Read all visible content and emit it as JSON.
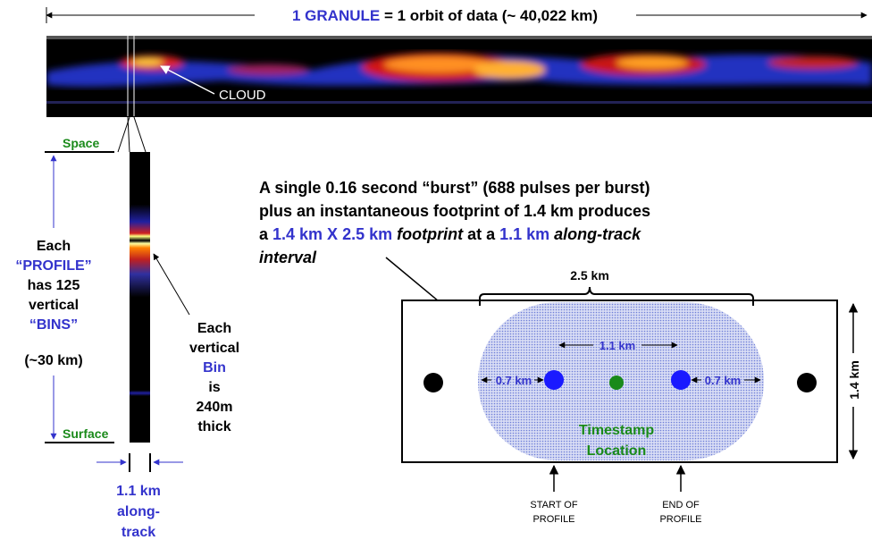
{
  "header": {
    "granule": "1 GRANULE",
    "rest": "= 1 orbit of data (~ 40,022 km)"
  },
  "strip": {
    "cloud": "CLOUD"
  },
  "profile": {
    "space": "Space",
    "surface": "Surface",
    "left": [
      "Each",
      "“PROFILE”",
      "has 125",
      "vertical",
      "“BINS”",
      "(~30 km)"
    ],
    "bin": [
      "Each",
      "vertical",
      "Bin",
      "is",
      "240m",
      "thick"
    ],
    "bottom": [
      "1.1 km",
      "along-",
      "track"
    ]
  },
  "caption": {
    "line1": "A single 0.16 second “burst” (688 pulses per burst)",
    "line2": "plus an instantaneous footprint of 1.4 km produces",
    "line3": [
      "a ",
      "1.4 km X 2.5 km",
      " footprint",
      " at a ",
      "1.1 km",
      " along-track"
    ],
    "line4": "interval"
  },
  "footprint": {
    "width": "2.5 km",
    "height": "1.4 km",
    "spacing": "1.1 km",
    "left_gap": "0.7 km",
    "right_gap": "0.7 km",
    "timestamp": [
      "Timestamp",
      "Location"
    ],
    "start": [
      "START OF",
      "PROFILE"
    ],
    "end": [
      "END OF",
      "PROFILE"
    ]
  }
}
